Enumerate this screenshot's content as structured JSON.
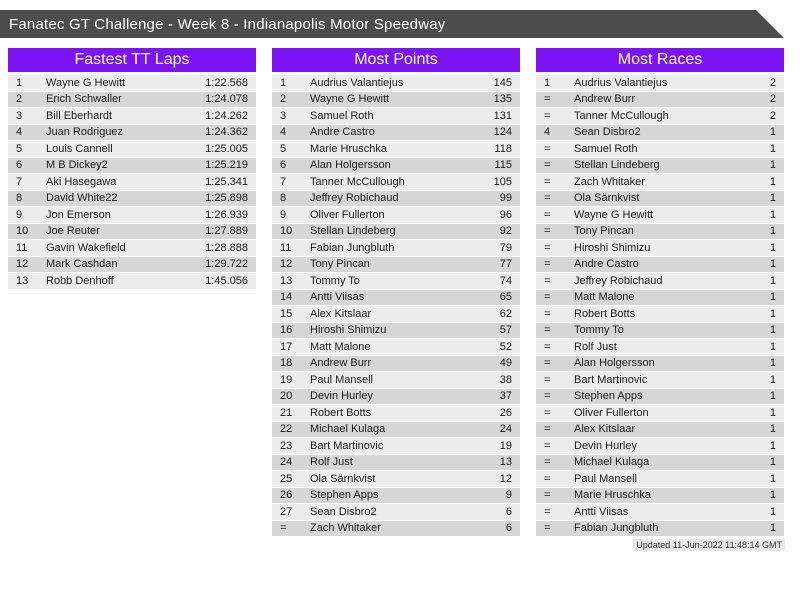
{
  "colors": {
    "title_bar_bg": "#4d4d4d",
    "accent_purple": "#7c13f2",
    "row_light": "#ececec",
    "row_dark": "#d6d6d6",
    "footer_bg": "#e9e9e9",
    "text_dark": "#1b1b1b"
  },
  "title_bar": {
    "title": "Fanatec GT Challenge - Week 8 - Indianapolis Motor Speedway"
  },
  "tables": {
    "fastest_laps": {
      "title": "Fastest TT Laps",
      "rows": [
        [
          "1",
          "Wayne G Hewitt",
          "1:22.568"
        ],
        [
          "2",
          "Erich Schwaller",
          "1:24.078"
        ],
        [
          "3",
          "Bill Eberhardt",
          "1:24.262"
        ],
        [
          "4",
          "Juan Rodriguez",
          "1:24.362"
        ],
        [
          "5",
          "Louis Cannell",
          "1:25.005"
        ],
        [
          "6",
          "M B Dickey2",
          "1:25.219"
        ],
        [
          "7",
          "Aki Hasegawa",
          "1:25.341"
        ],
        [
          "8",
          "David White22",
          "1:25.898"
        ],
        [
          "9",
          "Jon Emerson",
          "1:26.939"
        ],
        [
          "10",
          "Joe Reuter",
          "1:27.889"
        ],
        [
          "11",
          "Gavin Wakefield",
          "1:28.888"
        ],
        [
          "12",
          "Mark Cashdan",
          "1:29.722"
        ],
        [
          "13",
          "Robb Denhoff",
          "1:45.056"
        ]
      ]
    },
    "most_points": {
      "title": "Most Points",
      "rows": [
        [
          "1",
          "Audrius Valantiejus",
          "145"
        ],
        [
          "2",
          "Wayne G Hewitt",
          "135"
        ],
        [
          "3",
          "Samuel Roth",
          "131"
        ],
        [
          "4",
          "Andre Castro",
          "124"
        ],
        [
          "5",
          "Marie Hruschka",
          "118"
        ],
        [
          "6",
          "Alan Holgersson",
          "115"
        ],
        [
          "7",
          "Tanner McCullough",
          "105"
        ],
        [
          "8",
          "Jeffrey Robichaud",
          "99"
        ],
        [
          "9",
          "Oliver Fullerton",
          "96"
        ],
        [
          "10",
          "Stellan Lindeberg",
          "92"
        ],
        [
          "11",
          "Fabian Jungbluth",
          "79"
        ],
        [
          "12",
          "Tony Pincan",
          "77"
        ],
        [
          "13",
          "Tommy To",
          "74"
        ],
        [
          "14",
          "Antti Viisas",
          "65"
        ],
        [
          "15",
          "Alex Kitslaar",
          "62"
        ],
        [
          "16",
          "Hiroshi Shimizu",
          "57"
        ],
        [
          "17",
          "Matt Malone",
          "52"
        ],
        [
          "18",
          "Andrew Burr",
          "49"
        ],
        [
          "19",
          "Paul Mansell",
          "38"
        ],
        [
          "20",
          "Devin Hurley",
          "37"
        ],
        [
          "21",
          "Robert Botts",
          "26"
        ],
        [
          "22",
          "Michael Kulaga",
          "24"
        ],
        [
          "23",
          "Bart Martinovic",
          "19"
        ],
        [
          "24",
          "Rolf Just",
          "13"
        ],
        [
          "25",
          "Ola Särnkvist",
          "12"
        ],
        [
          "26",
          "Stephen Apps",
          "9"
        ],
        [
          "27",
          "Sean Disbro2",
          "6"
        ],
        [
          "=",
          "Zach Whitaker",
          "6"
        ]
      ]
    },
    "most_races": {
      "title": "Most Races",
      "rows": [
        [
          "1",
          "Audrius Valantiejus",
          "2"
        ],
        [
          "=",
          "Andrew Burr",
          "2"
        ],
        [
          "=",
          "Tanner McCullough",
          "2"
        ],
        [
          "4",
          "Sean Disbro2",
          "1"
        ],
        [
          "=",
          "Samuel Roth",
          "1"
        ],
        [
          "=",
          "Stellan Lindeberg",
          "1"
        ],
        [
          "=",
          "Zach Whitaker",
          "1"
        ],
        [
          "=",
          "Ola Särnkvist",
          "1"
        ],
        [
          "=",
          "Wayne G Hewitt",
          "1"
        ],
        [
          "=",
          "Tony Pincan",
          "1"
        ],
        [
          "=",
          "Hiroshi Shimizu",
          "1"
        ],
        [
          "=",
          "Andre Castro",
          "1"
        ],
        [
          "=",
          "Jeffrey Robichaud",
          "1"
        ],
        [
          "=",
          "Matt Malone",
          "1"
        ],
        [
          "=",
          "Robert Botts",
          "1"
        ],
        [
          "=",
          "Tommy To",
          "1"
        ],
        [
          "=",
          "Rolf Just",
          "1"
        ],
        [
          "=",
          "Alan Holgersson",
          "1"
        ],
        [
          "=",
          "Bart Martinovic",
          "1"
        ],
        [
          "=",
          "Stephen Apps",
          "1"
        ],
        [
          "=",
          "Oliver Fullerton",
          "1"
        ],
        [
          "=",
          "Alex Kitslaar",
          "1"
        ],
        [
          "=",
          "Devin Hurley",
          "1"
        ],
        [
          "=",
          "Michael Kulaga",
          "1"
        ],
        [
          "=",
          "Paul Mansell",
          "1"
        ],
        [
          "=",
          "Marie Hruschka",
          "1"
        ],
        [
          "=",
          "Antti Viisas",
          "1"
        ],
        [
          "=",
          "Fabian Jungbluth",
          "1"
        ]
      ]
    }
  },
  "footer": {
    "updated": "Updated 11-Jun-2022 11:48:14 GMT"
  }
}
